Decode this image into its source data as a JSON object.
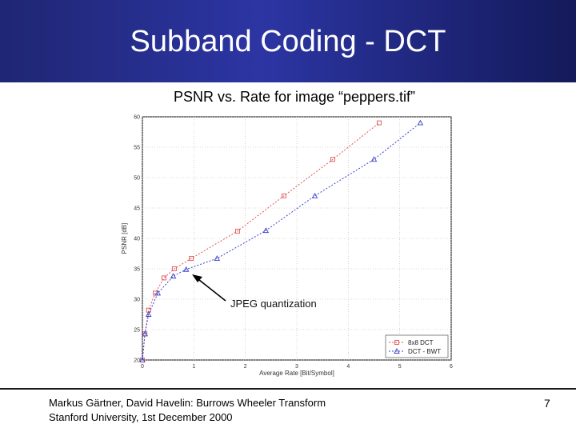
{
  "slide": {
    "title": "Subband Coding - DCT",
    "chart_heading": "PSNR vs. Rate for image “peppers.tif”",
    "annotation": "JPEG quantization",
    "footer_line1": "Markus Gärtner, David Havelin: Burrows Wheeler Transform",
    "footer_line2": "Stanford University, 1st December 2000",
    "page_number": "7"
  },
  "colors": {
    "header_left": "#1f2673",
    "header_right": "#141a5a",
    "series_8x8_dct": "#e05555",
    "series_dct_bwt": "#3c44c8"
  },
  "chart_data": {
    "type": "line",
    "title": "PSNR vs. Rate for image “peppers.tif”",
    "xlabel": "Average Rate [Bit/Symbol]",
    "ylabel": "PSNR [dB]",
    "xlim": [
      0,
      6
    ],
    "ylim": [
      20,
      60
    ],
    "xticks": [
      0,
      1,
      2,
      3,
      4,
      5,
      6
    ],
    "yticks": [
      20,
      25,
      30,
      35,
      40,
      45,
      50,
      55,
      60
    ],
    "grid": true,
    "legend": "bottom-right",
    "series": [
      {
        "name": "8x8 DCT",
        "marker": "square",
        "x": [
          0,
          0.05,
          0.12,
          0.25,
          0.42,
          0.62,
          0.95,
          1.85,
          2.75,
          3.7,
          4.6
        ],
        "y": [
          20,
          24.3,
          28.2,
          31,
          33.5,
          35,
          36.7,
          41.2,
          47,
          53,
          59
        ]
      },
      {
        "name": "DCT - BWT",
        "marker": "triangle",
        "x": [
          0,
          0.05,
          0.12,
          0.3,
          0.6,
          0.85,
          1.45,
          2.4,
          3.35,
          4.5,
          5.4
        ],
        "y": [
          20,
          24.3,
          27.5,
          31,
          33.8,
          34.9,
          36.7,
          41.3,
          47,
          53,
          59
        ]
      }
    ]
  }
}
